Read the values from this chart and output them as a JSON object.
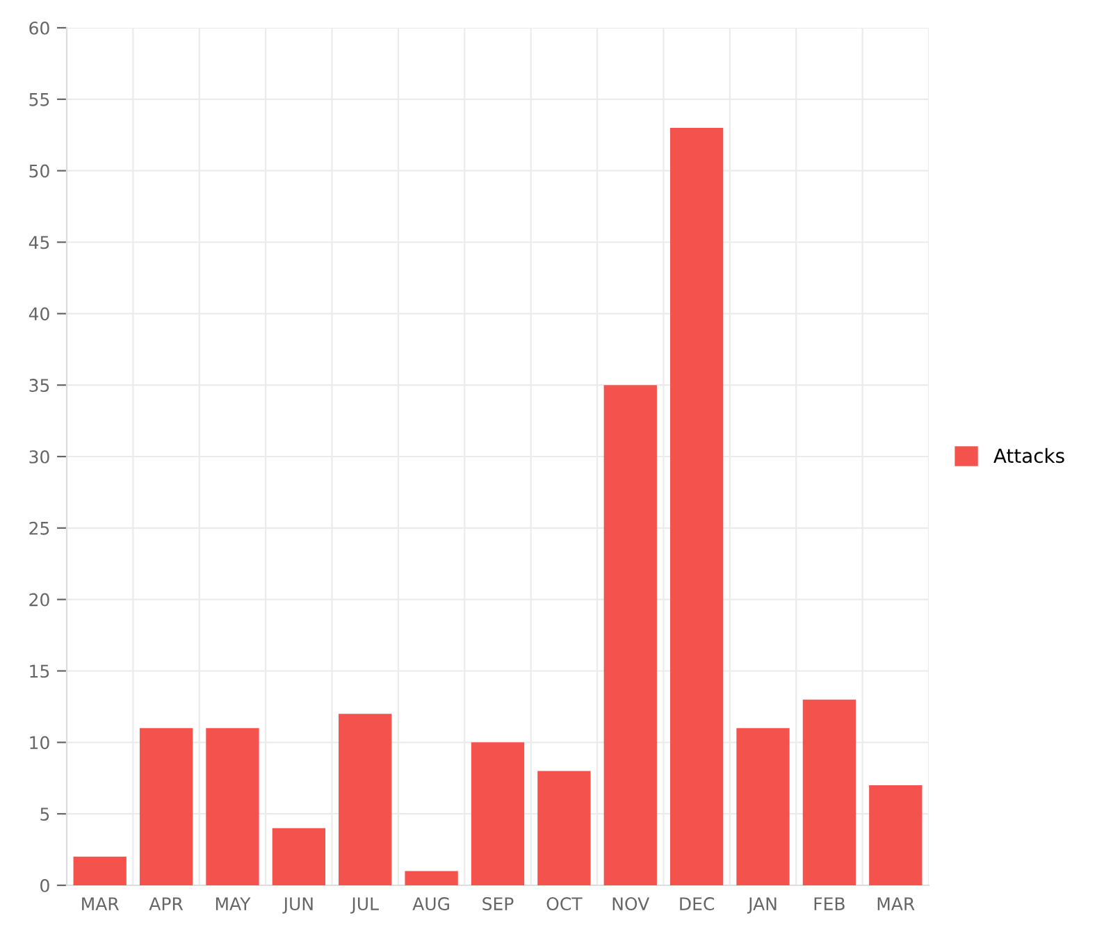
{
  "chart_data": {
    "type": "bar",
    "categories": [
      "MAR",
      "APR",
      "MAY",
      "JUN",
      "JUL",
      "AUG",
      "SEP",
      "OCT",
      "NOV",
      "DEC",
      "JAN",
      "FEB",
      "MAR"
    ],
    "series": [
      {
        "name": "Attacks",
        "color": "#f4524d",
        "values": [
          2,
          11,
          11,
          4,
          12,
          1,
          10,
          8,
          35,
          53,
          11,
          13,
          7
        ]
      }
    ],
    "ylim": [
      0,
      60
    ],
    "yticks": [
      0,
      5,
      10,
      15,
      20,
      25,
      30,
      35,
      40,
      45,
      50,
      55,
      60
    ],
    "grid": true,
    "legend": "right"
  }
}
